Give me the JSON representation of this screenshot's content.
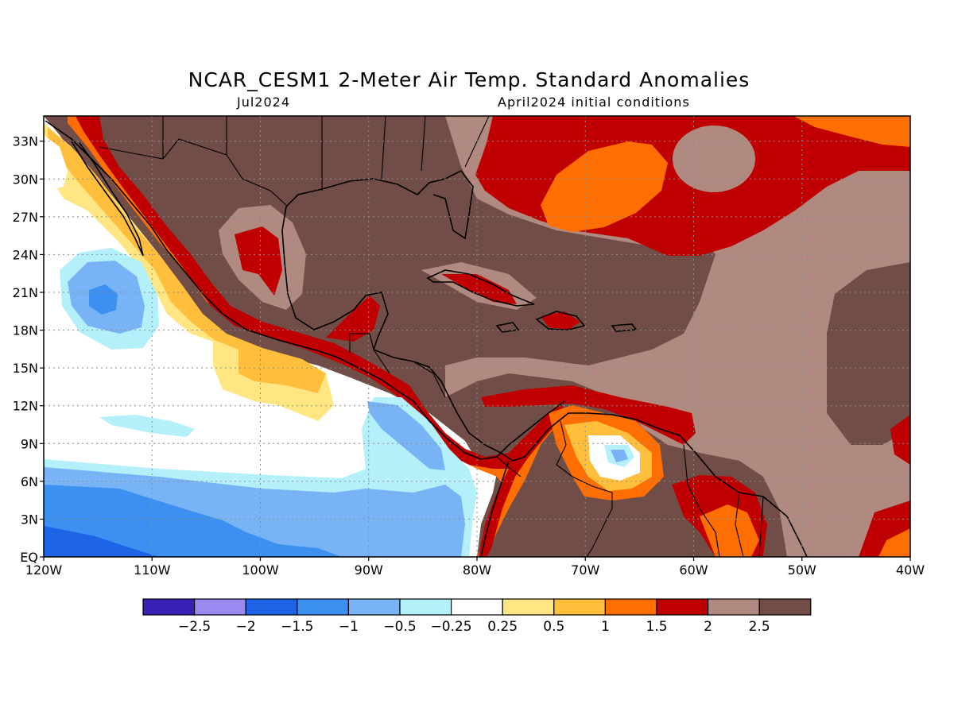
{
  "map": {
    "title": "NCAR_CESM1 2-Meter Air Temp. Standard Anomalies",
    "valid_month": "Jul2024",
    "init_note": "April2024 initial conditions",
    "lon_labels": [
      "120W",
      "110W",
      "100W",
      "90W",
      "80W",
      "70W",
      "60W",
      "50W",
      "40W"
    ],
    "lat_labels": [
      "EQ",
      "3N",
      "6N",
      "9N",
      "12N",
      "15N",
      "18N",
      "21N",
      "24N",
      "27N",
      "30N",
      "33N"
    ],
    "extent": {
      "lon_min": -120,
      "lon_max": -40,
      "lat_min": 0,
      "lat_max": 35
    }
  },
  "legend": {
    "colors": [
      "#3a1fb4",
      "#9b88f0",
      "#1e64e6",
      "#3c90f0",
      "#78b4f5",
      "#b4f0fa",
      "#ffffff",
      "#ffe682",
      "#ffbe3c",
      "#ff6e00",
      "#c00000",
      "#b08a80",
      "#704d46"
    ],
    "labels": [
      "-2.5",
      "-2",
      "-1.5",
      "-1",
      "-0.5",
      "-0.25",
      "0.25",
      "0.5",
      "1",
      "1.5",
      "2",
      "2.5"
    ]
  },
  "colors": {
    "very_warm": "#704d46",
    "warm": "#b08a80",
    "red": "#c00000",
    "orange": "#ff6e00",
    "gold": "#ffbe3c",
    "yellow": "#ffe682",
    "neutral": "#ffffff",
    "cyan": "#b4f0fa",
    "lightblue": "#78b4f5",
    "blue": "#3c90f0",
    "darkblue": "#1e64e6",
    "coast": "#000000",
    "grid": "#8c8c8c"
  }
}
